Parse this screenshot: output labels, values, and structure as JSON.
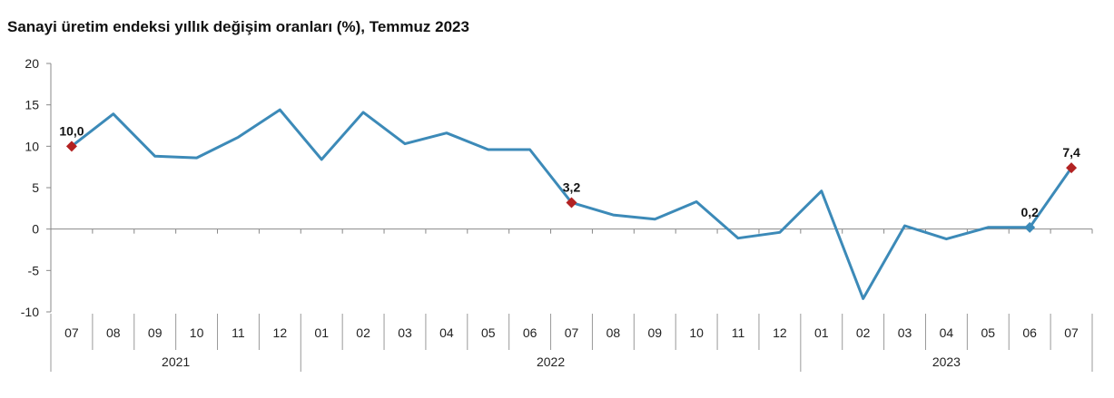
{
  "chart_data": {
    "type": "line",
    "title": "Sanayi üretim endeksi yıllık değişim oranları (%), Temmuz 2023",
    "xlabel": "",
    "ylabel": "",
    "ylim": [
      -10,
      20
    ],
    "yticks": [
      "20",
      "15",
      "10",
      "5",
      "0",
      "-5",
      "-10"
    ],
    "categories": [
      "07",
      "08",
      "09",
      "10",
      "11",
      "12",
      "01",
      "02",
      "03",
      "04",
      "05",
      "06",
      "07",
      "08",
      "09",
      "10",
      "11",
      "12",
      "01",
      "02",
      "03",
      "04",
      "05",
      "06",
      "07"
    ],
    "years": [
      {
        "label": "2021",
        "count": 6
      },
      {
        "label": "2022",
        "count": 12
      },
      {
        "label": "2023",
        "count": 7
      }
    ],
    "values": [
      10.0,
      13.9,
      8.8,
      8.6,
      11.1,
      14.4,
      8.4,
      14.1,
      10.3,
      11.6,
      9.6,
      9.6,
      3.2,
      1.7,
      1.2,
      3.3,
      -1.1,
      -0.4,
      4.6,
      -8.4,
      0.4,
      -1.2,
      0.2,
      0.2,
      7.4
    ],
    "highlights": [
      {
        "index": 0,
        "label": "10,0",
        "color": "#b22222",
        "shape": "diamond"
      },
      {
        "index": 12,
        "label": "3,2",
        "color": "#b22222",
        "shape": "diamond"
      },
      {
        "index": 23,
        "label": "0,2",
        "color": "#3c8ab8",
        "shape": "diamond"
      },
      {
        "index": 24,
        "label": "7,4",
        "color": "#b22222",
        "shape": "diamond"
      }
    ],
    "line_color": "#3c8ab8",
    "grid": false,
    "legend": "none"
  }
}
